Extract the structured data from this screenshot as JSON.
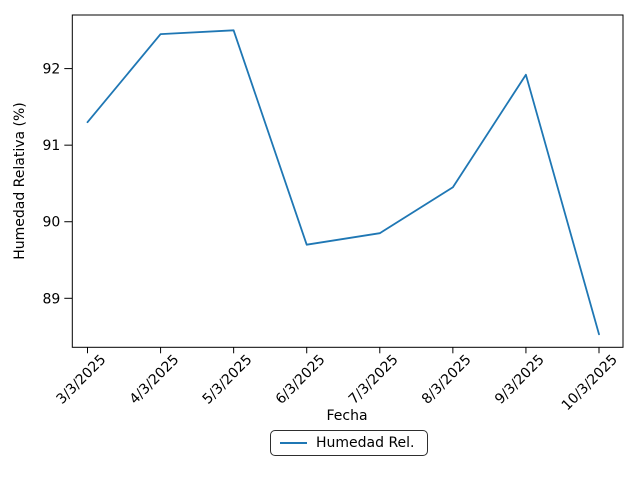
{
  "chart_data": {
    "type": "line",
    "xlabel": "Fecha",
    "ylabel": "Humedad Relativa (%)",
    "categories": [
      "3/3/2025",
      "4/3/2025",
      "5/3/2025",
      "6/3/2025",
      "7/3/2025",
      "8/3/2025",
      "9/3/2025",
      "10/3/2025"
    ],
    "series": [
      {
        "name": "Humedad Rel.",
        "color": "#1f77b4",
        "values": [
          91.3,
          92.45,
          92.5,
          89.7,
          89.85,
          90.45,
          91.92,
          88.53
        ]
      }
    ],
    "yticks": [
      89,
      90,
      91,
      92
    ],
    "ylim": [
      88.36,
      92.7
    ],
    "grid": false,
    "legend": {
      "position": "bottom-center-outside",
      "entries": [
        "Humedad Rel."
      ]
    },
    "axis_color": "#000000",
    "tick_rotation_deg": 45
  }
}
